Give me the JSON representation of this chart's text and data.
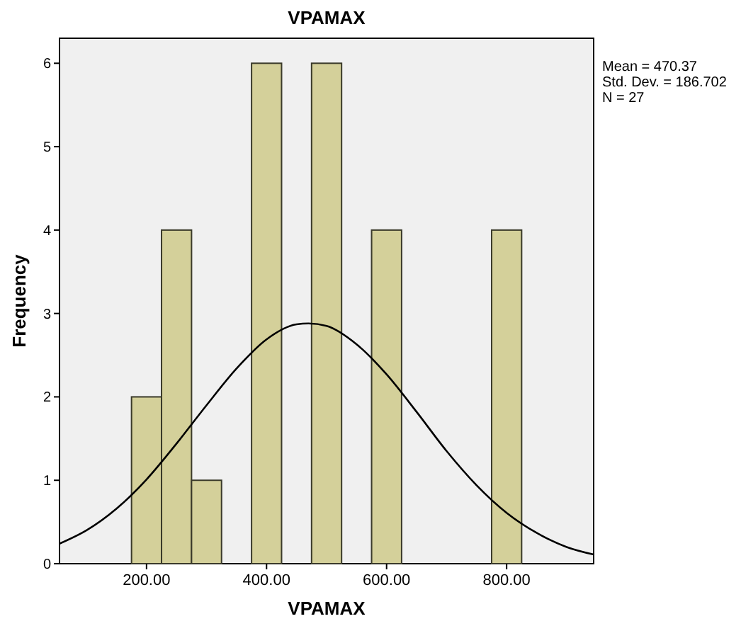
{
  "chart_data": {
    "type": "histogram",
    "title": "VPAMAX",
    "xlabel": "VPAMAX",
    "ylabel": "Frequency",
    "bins": [
      175,
      225,
      275,
      325,
      375,
      425,
      475,
      525,
      575,
      625,
      675,
      725,
      775,
      825
    ],
    "values": [
      2,
      4,
      1,
      0,
      6,
      0,
      6,
      0,
      4,
      0,
      0,
      0,
      4
    ],
    "color": "#d4d09a",
    "series": [
      {
        "type": "line",
        "color": "#000000",
        "x": [
          55,
          100,
          150,
          200,
          250,
          300,
          350,
          400,
          450,
          470,
          500,
          550,
          600,
          650,
          700,
          750,
          800,
          850,
          900,
          945
        ],
        "values": [
          0.24,
          0.4,
          0.66,
          1.01,
          1.44,
          1.9,
          2.34,
          2.69,
          2.87,
          2.88,
          2.85,
          2.63,
          2.27,
          1.82,
          1.35,
          0.94,
          0.61,
          0.37,
          0.2,
          0.11
        ]
      }
    ],
    "xlim": [
      55,
      945
    ],
    "xticks": [
      {
        "value": 200,
        "label": "200.00"
      },
      {
        "value": 400,
        "label": "400.00"
      },
      {
        "value": 600,
        "label": "600.00"
      },
      {
        "value": 800,
        "label": "800.00"
      }
    ],
    "ylim": [
      0,
      6.3
    ],
    "yticks": [
      0,
      1,
      2,
      3,
      4,
      5,
      6
    ],
    "grid": false,
    "annotations": [
      "Mean = 470.37",
      "Std. Dev. = 186.702",
      "N = 27"
    ]
  }
}
